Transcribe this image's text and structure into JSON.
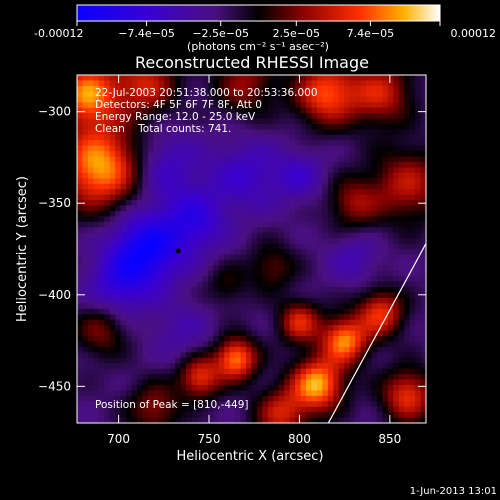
{
  "chart_data": {
    "type": "heatmap",
    "title": "Reconstructed RHESSI Image",
    "xlabel": "Heliocentric X (arcsec)",
    "ylabel": "Heliocentric Y (arcsec)",
    "xlim": [
      677,
      870
    ],
    "ylim": [
      -470,
      -280
    ],
    "x_ticks": [
      700,
      750,
      800,
      850
    ],
    "y_ticks": [
      -300,
      -350,
      -400,
      -450
    ],
    "colorbar": {
      "range": [
        -0.00012,
        0.00012
      ],
      "tick_values": [
        -0.00012,
        -7.4e-05,
        -2.5e-05,
        2.5e-05,
        7.4e-05,
        0.00012
      ],
      "tick_labels": [
        "-0.00012",
        "−7.4e−05",
        "−2.5e−05",
        "2.5e−05",
        "7.4e−05",
        "0.00012"
      ],
      "units_label": "(photons cm⁻² s⁻¹ asec⁻²)"
    },
    "annotations": {
      "time": "22-Jul-2003 20:51:38.000 to 20:53:36.000",
      "detectors": "Detectors: 4F 5F 6F 7F 8F, Att 0",
      "energy": "Energy Range: 12.0 - 25.0 keV",
      "clean": "Clean    Total counts: 741.",
      "peak": "Position of Peak = [810,-449]"
    },
    "marker_point": [
      733,
      -376
    ],
    "limb_line": [
      [
        816,
        -470
      ],
      [
        870,
        -372
      ]
    ],
    "blobs": [
      {
        "x": 690,
        "y": -330,
        "amp": 1.0,
        "s": 16
      },
      {
        "x": 683,
        "y": -290,
        "amp": 0.9,
        "s": 12
      },
      {
        "x": 715,
        "y": -285,
        "amp": 0.6,
        "s": 12
      },
      {
        "x": 770,
        "y": -285,
        "amp": 0.45,
        "s": 12
      },
      {
        "x": 815,
        "y": -290,
        "amp": 0.8,
        "s": 12
      },
      {
        "x": 845,
        "y": -290,
        "amp": 0.6,
        "s": 12
      },
      {
        "x": 860,
        "y": -340,
        "amp": 0.55,
        "s": 14
      },
      {
        "x": 830,
        "y": -350,
        "amp": 0.45,
        "s": 10
      },
      {
        "x": 760,
        "y": -395,
        "amp": 0.25,
        "s": 8
      },
      {
        "x": 785,
        "y": -385,
        "amp": 0.35,
        "s": 9
      },
      {
        "x": 690,
        "y": -420,
        "amp": 0.4,
        "s": 10
      },
      {
        "x": 765,
        "y": -435,
        "amp": 0.9,
        "s": 8
      },
      {
        "x": 745,
        "y": -445,
        "amp": 0.7,
        "s": 8
      },
      {
        "x": 810,
        "y": -449,
        "amp": 1.0,
        "s": 10
      },
      {
        "x": 825,
        "y": -425,
        "amp": 0.9,
        "s": 9
      },
      {
        "x": 845,
        "y": -410,
        "amp": 0.7,
        "s": 9
      },
      {
        "x": 800,
        "y": -415,
        "amp": 0.65,
        "s": 8
      },
      {
        "x": 860,
        "y": -455,
        "amp": 0.7,
        "s": 10
      },
      {
        "x": 720,
        "y": -462,
        "amp": 0.45,
        "s": 10
      },
      {
        "x": 790,
        "y": -465,
        "amp": 0.6,
        "s": 10
      },
      {
        "x": 715,
        "y": -375,
        "amp": -0.75,
        "s": 14
      },
      {
        "x": 742,
        "y": -360,
        "amp": -0.45,
        "s": 12
      },
      {
        "x": 725,
        "y": -330,
        "amp": -0.35,
        "s": 14
      },
      {
        "x": 700,
        "y": -395,
        "amp": -0.4,
        "s": 12
      },
      {
        "x": 770,
        "y": -335,
        "amp": -0.35,
        "s": 14
      },
      {
        "x": 800,
        "y": -335,
        "amp": -0.3,
        "s": 10
      },
      {
        "x": 830,
        "y": -380,
        "amp": -0.25,
        "s": 10
      },
      {
        "x": 735,
        "y": -420,
        "amp": -0.2,
        "s": 12
      }
    ],
    "baseline": -0.2
  }
}
